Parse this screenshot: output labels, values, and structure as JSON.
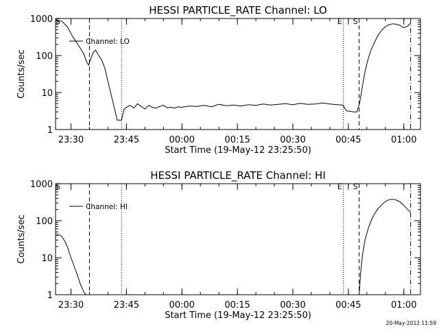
{
  "footer_timestamp": "20-May-2012 11:59",
  "chart_data": [
    {
      "type": "line",
      "title": "HESSI PARTICLE_RATE Channel: LO",
      "xlabel": "Start Time (19-May-12 23:25:50)",
      "ylabel": "Counts/sec",
      "yscale": "log",
      "ylim": [
        1,
        1000
      ],
      "ytick_labels": [
        "1",
        "10",
        "100",
        "1000"
      ],
      "xlim": [
        "23:25:50",
        "01:04:30"
      ],
      "xtick_labels": [
        "23:30",
        "23:45",
        "00:00",
        "00:15",
        "00:30",
        "00:45",
        "01:00"
      ],
      "legend": {
        "position": "top-left",
        "entries": [
          "Channel: LO"
        ]
      },
      "annotations": [
        {
          "text": "S",
          "time": "23:25:50"
        },
        {
          "text": "E",
          "time": "00:43:40"
        },
        {
          "text": "S",
          "time": "00:47:55"
        }
      ],
      "vertical_lines": [
        {
          "time": "23:35:00",
          "style": "dashed"
        },
        {
          "time": "23:43:40",
          "style": "dotted"
        },
        {
          "time": "00:43:40",
          "style": "dotted"
        },
        {
          "time": "00:47:55",
          "style": "dashed"
        },
        {
          "time": "01:01:50",
          "style": "dashdot"
        }
      ],
      "series": [
        {
          "name": "Channel: LO",
          "x": [
            "23:25:50",
            "23:27:30",
            "23:29:00",
            "23:30:30",
            "23:32:00",
            "23:33:30",
            "23:34:10",
            "23:34:45",
            "23:35:20",
            "23:36:00",
            "23:36:40",
            "23:37:30",
            "23:38:20",
            "23:39:10",
            "23:40:00",
            "23:40:50",
            "23:41:40",
            "23:42:30",
            "23:43:00",
            "23:43:40",
            "23:44:20",
            "23:45:00",
            "23:46:00",
            "23:47:00",
            "23:48:00",
            "23:49:00",
            "23:50:00",
            "23:51:00",
            "23:52:00",
            "23:53:00",
            "23:54:00",
            "23:55:00",
            "23:56:00",
            "23:57:00",
            "23:58:00",
            "23:59:00",
            "00:00:00",
            "00:02:00",
            "00:04:00",
            "00:06:00",
            "00:08:00",
            "00:10:00",
            "00:12:00",
            "00:14:00",
            "00:16:00",
            "00:18:00",
            "00:20:00",
            "00:22:00",
            "00:24:00",
            "00:26:00",
            "00:28:00",
            "00:30:00",
            "00:32:00",
            "00:34:00",
            "00:36:00",
            "00:38:00",
            "00:40:00",
            "00:42:00",
            "00:43:30",
            "00:44:30",
            "00:45:30",
            "00:46:30",
            "00:47:20",
            "00:48:00",
            "00:48:40",
            "00:49:20",
            "00:50:10",
            "00:51:00",
            "00:52:00",
            "00:53:00",
            "00:54:00",
            "00:55:00",
            "00:56:00",
            "00:57:00",
            "00:58:00",
            "00:59:00",
            "01:00:00",
            "01:01:00",
            "01:01:50"
          ],
          "y": [
            900,
            850,
            600,
            320,
            190,
            110,
            70,
            55,
            80,
            120,
            140,
            100,
            75,
            45,
            20,
            9,
            4,
            1.8,
            1.8,
            1.8,
            3.5,
            4,
            4.5,
            3.8,
            5,
            4.2,
            3.6,
            4.5,
            4,
            3.8,
            4.2,
            4.5,
            3.9,
            4,
            3.8,
            4.1,
            4,
            4.3,
            4.2,
            4.5,
            4.1,
            4.8,
            4.4,
            4.6,
            4.3,
            4.7,
            4.5,
            4.9,
            4.6,
            4.8,
            5,
            4.7,
            5.1,
            4.8,
            4.9,
            5.2,
            4.9,
            4.7,
            4.6,
            3.2,
            3.1,
            3,
            3,
            5,
            12,
            30,
            70,
            130,
            220,
            350,
            480,
            600,
            680,
            720,
            700,
            650,
            560,
            620,
            750
          ]
        }
      ]
    },
    {
      "type": "line",
      "title": "HESSI PARTICLE_RATE Channel: HI",
      "xlabel": "Start Time (19-May-12 23:25:50)",
      "ylabel": "Counts/sec",
      "yscale": "log",
      "ylim": [
        1,
        1000
      ],
      "ytick_labels": [
        "1",
        "10",
        "100",
        "1000"
      ],
      "xlim": [
        "23:25:50",
        "01:04:30"
      ],
      "xtick_labels": [
        "23:30",
        "23:45",
        "00:00",
        "00:15",
        "00:30",
        "00:45",
        "01:00"
      ],
      "legend": {
        "position": "top-left",
        "entries": [
          "Channel: HI"
        ]
      },
      "annotations": [
        {
          "text": "S",
          "time": "23:25:50"
        },
        {
          "text": "E",
          "time": "00:43:40"
        },
        {
          "text": "S",
          "time": "00:47:55"
        }
      ],
      "vertical_lines": [
        {
          "time": "23:35:00",
          "style": "dashed"
        },
        {
          "time": "23:43:40",
          "style": "dotted"
        },
        {
          "time": "00:43:40",
          "style": "dotted"
        },
        {
          "time": "00:47:55",
          "style": "dashed"
        },
        {
          "time": "01:01:50",
          "style": "dashdot"
        }
      ],
      "series": [
        {
          "name": "Channel: HI",
          "x": [
            "23:25:50",
            "23:26:40",
            "23:27:30",
            "23:28:20",
            "23:29:10",
            "23:30:00",
            "23:30:50",
            "23:31:40",
            "23:32:30",
            "23:33:10",
            "23:33:40",
            "23:34:10"
          ],
          "y": [
            45,
            42,
            38,
            28,
            18,
            10,
            6,
            3.5,
            2,
            1.4,
            1.1,
            1
          ]
        },
        {
          "name": "Channel: HI",
          "x": [
            "00:47:55",
            "00:48:20",
            "00:48:50",
            "00:49:30",
            "00:50:20",
            "00:51:10",
            "00:52:00",
            "00:53:00",
            "00:54:00",
            "00:55:00",
            "00:56:00",
            "00:57:00",
            "00:58:00",
            "00:59:00",
            "01:00:00",
            "01:01:00",
            "01:01:50"
          ],
          "y": [
            1,
            4,
            12,
            30,
            60,
            100,
            150,
            210,
            270,
            330,
            370,
            380,
            360,
            320,
            260,
            200,
            170
          ]
        }
      ]
    }
  ]
}
